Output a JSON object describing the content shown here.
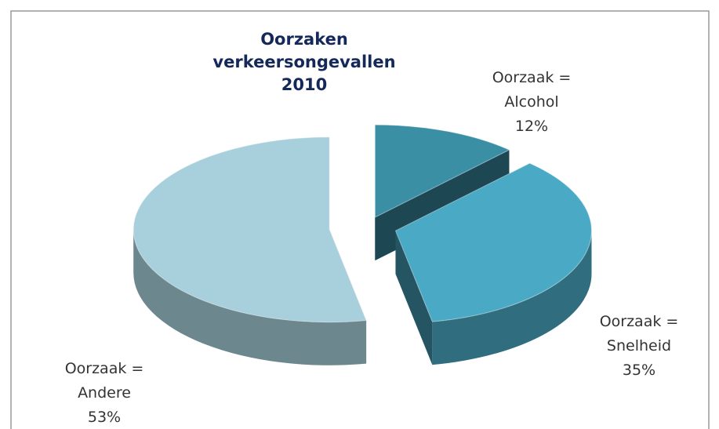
{
  "chart_data": {
    "type": "pie",
    "title": "Oorzaken verkeersongevallen 2010",
    "categories": [
      "Oorzaak = Alcohol",
      "Oorzaak = Snelheid",
      "Oorzaak = Andere"
    ],
    "values": [
      12,
      35,
      53
    ],
    "value_labels": [
      "12%",
      "35%",
      "53%"
    ],
    "colors": [
      "#3a8fa5",
      "#4aa9c4",
      "#a8cfdc"
    ]
  }
}
